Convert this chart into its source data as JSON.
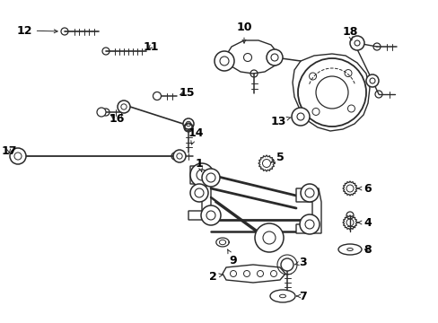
{
  "background_color": "#ffffff",
  "line_color": "#2a2a2a",
  "label_color": "#000000",
  "figsize": [
    4.89,
    3.6
  ],
  "dpi": 100
}
